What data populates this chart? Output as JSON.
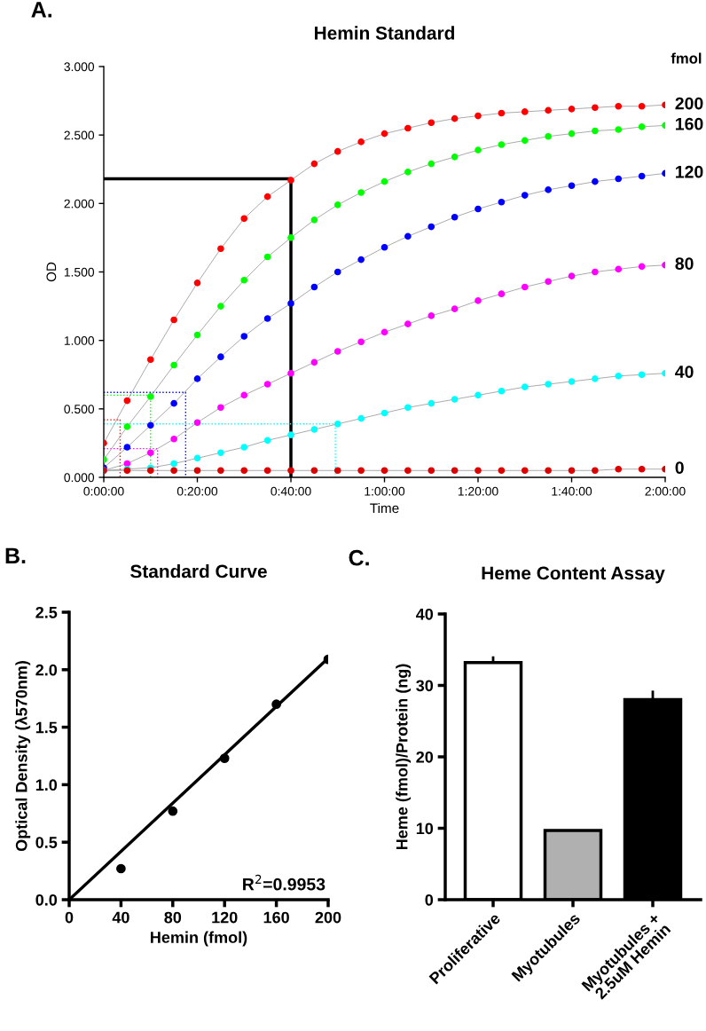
{
  "chart_data": [
    {
      "type": "line",
      "title": "Hemin Standard",
      "xlabel": "Time",
      "ylabel": "OD",
      "legend_title": "fmol",
      "legend": false,
      "grid": false,
      "annotations": [
        "A."
      ],
      "x": [
        0,
        0.0833,
        0.1667,
        0.25,
        0.3333,
        0.4167,
        0.5,
        0.5833,
        0.6667,
        0.75,
        0.8333,
        0.9167,
        1,
        1.0833,
        1.1667,
        1.25,
        1.3333,
        1.4167,
        1.5,
        1.5833,
        1.6667,
        1.75,
        1.8333,
        1.9167,
        2
      ],
      "xlim": [
        0,
        2
      ],
      "xticks": [
        {
          "value": 0,
          "label": "0:00:00"
        },
        {
          "value": 0.3333,
          "label": "0:20:00"
        },
        {
          "value": 0.6667,
          "label": "0:40:00"
        },
        {
          "value": 1,
          "label": "1:00:00"
        },
        {
          "value": 1.3333,
          "label": "1:20:00"
        },
        {
          "value": 1.6667,
          "label": "1:40:00"
        },
        {
          "value": 2,
          "label": "2:00:00"
        }
      ],
      "ylim": [
        0,
        3
      ],
      "yticks": [
        {
          "value": 0,
          "label": "0.000"
        },
        {
          "value": 0.5,
          "label": "0.500"
        },
        {
          "value": 1,
          "label": "1.000"
        },
        {
          "value": 1.5,
          "label": "1.500"
        },
        {
          "value": 2,
          "label": "2.000"
        },
        {
          "value": 2.5,
          "label": "2.500"
        },
        {
          "value": 3,
          "label": "3.000"
        }
      ],
      "series": [
        {
          "name": "200",
          "color": "#ff0000",
          "marker": "circle",
          "line_style": "solid",
          "values": [
            0.25,
            0.56,
            0.86,
            1.15,
            1.42,
            1.67,
            1.89,
            2.05,
            2.17,
            2.29,
            2.38,
            2.45,
            2.51,
            2.55,
            2.59,
            2.62,
            2.64,
            2.66,
            2.67,
            2.68,
            2.69,
            2.7,
            2.71,
            2.71,
            2.72
          ]
        },
        {
          "name": "160",
          "color": "#00ff00",
          "marker": "circle",
          "line_style": "solid",
          "values": [
            0.13,
            0.37,
            0.59,
            0.82,
            1.04,
            1.25,
            1.44,
            1.61,
            1.75,
            1.88,
            1.99,
            2.08,
            2.16,
            2.23,
            2.29,
            2.34,
            2.39,
            2.43,
            2.46,
            2.49,
            2.51,
            2.53,
            2.54,
            2.56,
            2.57
          ]
        },
        {
          "name": "120",
          "color": "#0000ff",
          "marker": "circle",
          "line_style": "solid",
          "values": [
            0.07,
            0.22,
            0.38,
            0.54,
            0.72,
            0.88,
            1.03,
            1.16,
            1.27,
            1.39,
            1.5,
            1.59,
            1.68,
            1.76,
            1.83,
            1.9,
            1.96,
            2.01,
            2.06,
            2.1,
            2.13,
            2.16,
            2.18,
            2.2,
            2.22
          ]
        },
        {
          "name": "80",
          "color": "#ff00ff",
          "marker": "circle",
          "line_style": "solid",
          "values": [
            0.05,
            0.1,
            0.18,
            0.28,
            0.4,
            0.51,
            0.6,
            0.68,
            0.76,
            0.84,
            0.92,
            0.99,
            1.06,
            1.12,
            1.18,
            1.23,
            1.29,
            1.34,
            1.39,
            1.43,
            1.47,
            1.5,
            1.52,
            1.54,
            1.55
          ]
        },
        {
          "name": "40",
          "color": "#00ffff",
          "marker": "circle",
          "line_style": "solid",
          "values": [
            0.05,
            0.06,
            0.07,
            0.1,
            0.14,
            0.18,
            0.22,
            0.27,
            0.31,
            0.35,
            0.39,
            0.43,
            0.47,
            0.51,
            0.54,
            0.57,
            0.6,
            0.63,
            0.66,
            0.68,
            0.7,
            0.72,
            0.74,
            0.75,
            0.76
          ]
        },
        {
          "name": "0",
          "color": "#dd0000",
          "marker": "circle",
          "line_style": "solid",
          "values": [
            0.05,
            0.05,
            0.05,
            0.05,
            0.05,
            0.05,
            0.05,
            0.05,
            0.05,
            0.05,
            0.05,
            0.05,
            0.05,
            0.05,
            0.05,
            0.05,
            0.05,
            0.05,
            0.05,
            0.05,
            0.05,
            0.05,
            0.06,
            0.06,
            0.06
          ]
        },
        {
          "color": "#000000",
          "marker": "none",
          "line_style": "solid",
          "x": [
            0,
            0.6667,
            0.6667
          ],
          "values": [
            2.18,
            2.18,
            0
          ]
        },
        {
          "color": "#ff0000",
          "marker": "none",
          "line_style": "dotted",
          "x": [
            0,
            0.0583,
            0.0583
          ],
          "values": [
            0.42,
            0.42,
            0
          ]
        },
        {
          "color": "#00ff00",
          "marker": "none",
          "line_style": "dotted",
          "x": [
            0,
            0.1667,
            0.1667
          ],
          "values": [
            0.6,
            0.6,
            0
          ]
        },
        {
          "color": "#0000ff",
          "marker": "none",
          "line_style": "dotted",
          "x": [
            0,
            0.2917,
            0.2917
          ],
          "values": [
            0.62,
            0.62,
            0
          ]
        },
        {
          "color": "#ff00ff",
          "marker": "none",
          "line_style": "dotted",
          "x": [
            0,
            0.1917,
            0.1917
          ],
          "values": [
            0.21,
            0.21,
            0
          ]
        },
        {
          "color": "#00ffff",
          "marker": "none",
          "line_style": "dotted",
          "x": [
            0,
            0.825,
            0.825
          ],
          "values": [
            0.39,
            0.39,
            0
          ]
        }
      ]
    },
    {
      "type": "scatter",
      "title": "Standard Curve",
      "xlabel": "Hemin (fmol)",
      "ylabel": "Optical Density (λ570nm)",
      "legend": false,
      "grid": false,
      "annotations": [
        "B.",
        "R$^{2}$=0.9953"
      ],
      "x": [
        40,
        80,
        120,
        160,
        200
      ],
      "xlim": [
        0,
        200
      ],
      "xticks": [
        0,
        40,
        80,
        120,
        160,
        200
      ],
      "ylim": [
        0,
        2.5
      ],
      "yticks": [
        {
          "value": 0,
          "label": "0.0"
        },
        {
          "value": 0.5,
          "label": "0.5"
        },
        {
          "value": 1,
          "label": "1.0"
        },
        {
          "value": 1.5,
          "label": "1.5"
        },
        {
          "value": 2,
          "label": "2.0"
        },
        {
          "value": 2.5,
          "label": "2.5"
        }
      ],
      "series": [
        {
          "color": "#000000",
          "marker": "circle",
          "values": [
            0.27,
            0.77,
            1.23,
            1.7,
            2.09
          ]
        },
        {
          "type": "line",
          "color": "#000000",
          "marker": "none",
          "line_style": "solid",
          "x": [
            0,
            200
          ],
          "values": [
            0,
            2.1
          ]
        }
      ]
    },
    {
      "type": "bar",
      "title": "Heme Content Assay",
      "ylabel": "Heme (fmol)/Protein (ng)",
      "legend": false,
      "grid": false,
      "annotations": [
        "C."
      ],
      "categories": [
        "Proliferative",
        "Myotubules",
        "Myotubules +\n2.5uM Hemin"
      ],
      "values": [
        33.2,
        9.7,
        28.0
      ],
      "colors": [
        "#ffffff",
        "#b0b0b0",
        "#000000"
      ],
      "errors": [
        [
          33.2,
          33.9
        ],
        null,
        [
          28.0,
          29.1
        ]
      ],
      "ylim": [
        0,
        40
      ],
      "yticks": [
        0,
        10,
        20,
        30,
        40
      ]
    }
  ]
}
